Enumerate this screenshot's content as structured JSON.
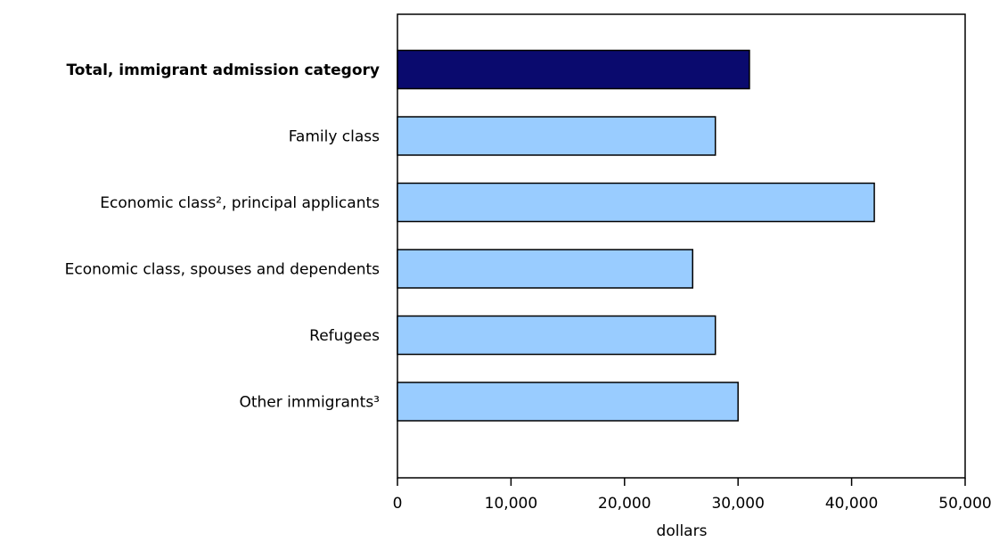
{
  "chart_data": {
    "type": "bar",
    "orientation": "horizontal",
    "categories": [
      "Total, immigrant admission category",
      "Family class",
      "Economic class², principal applicants",
      "Economic class, spouses and dependents",
      "Refugees",
      "Other immigrants³"
    ],
    "values": [
      31000,
      28000,
      42000,
      26000,
      28000,
      30000
    ],
    "bold_categories": [
      0
    ],
    "bar_colors": [
      "#0a0a6e",
      "#99ccff",
      "#99ccff",
      "#99ccff",
      "#99ccff",
      "#99ccff"
    ],
    "xlabel": "dollars",
    "xlim": [
      0,
      50000
    ],
    "xticks": [
      0,
      10000,
      20000,
      30000,
      40000,
      50000
    ],
    "xtick_labels": [
      "0",
      "10,000",
      "20,000",
      "30,000",
      "40,000",
      "50,000"
    ],
    "grid": false,
    "legend": "none"
  }
}
